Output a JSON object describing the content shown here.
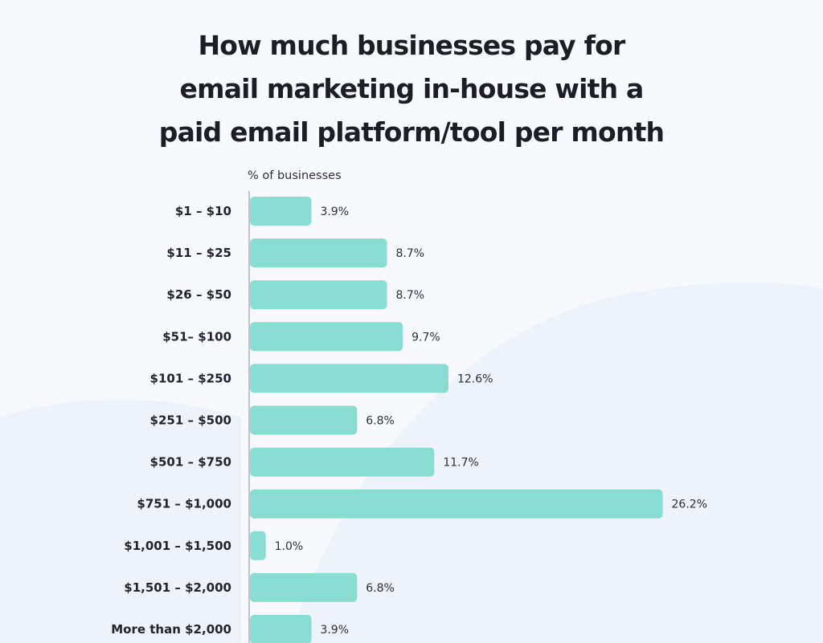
{
  "title_lines": [
    "How much businesses pay for",
    "email marketing in-house with a",
    "paid email platform/tool per month"
  ],
  "colors": {
    "bar": "#88dcd2",
    "axis": "#bfc5cf",
    "background": "#f7f9fd",
    "wave": "#eef2fa"
  },
  "chart_data": {
    "type": "bar",
    "orientation": "horizontal",
    "title": "How much businesses pay for email marketing in-house with a paid email platform/tool per month",
    "xlabel": "% of businesses",
    "ylabel": "",
    "categories": [
      "$1 – $10",
      "$11 – $25",
      "$26 – $50",
      "$51– $100",
      "$101 – $250",
      "$251 – $500",
      "$501 – $750",
      "$751 – $1,000",
      "$1,001 – $1,500",
      "$1,501 – $2,000",
      "More than $2,000"
    ],
    "values": [
      3.9,
      8.7,
      8.7,
      9.7,
      12.6,
      6.8,
      11.7,
      26.2,
      1.0,
      6.8,
      3.9
    ],
    "value_labels": [
      "3.9%",
      "8.7%",
      "8.7%",
      "9.7%",
      "12.6%",
      "6.8%",
      "11.7%",
      "26.2%",
      "1.0%",
      "6.8%",
      "3.9%"
    ],
    "grid": false,
    "legend": "none"
  }
}
